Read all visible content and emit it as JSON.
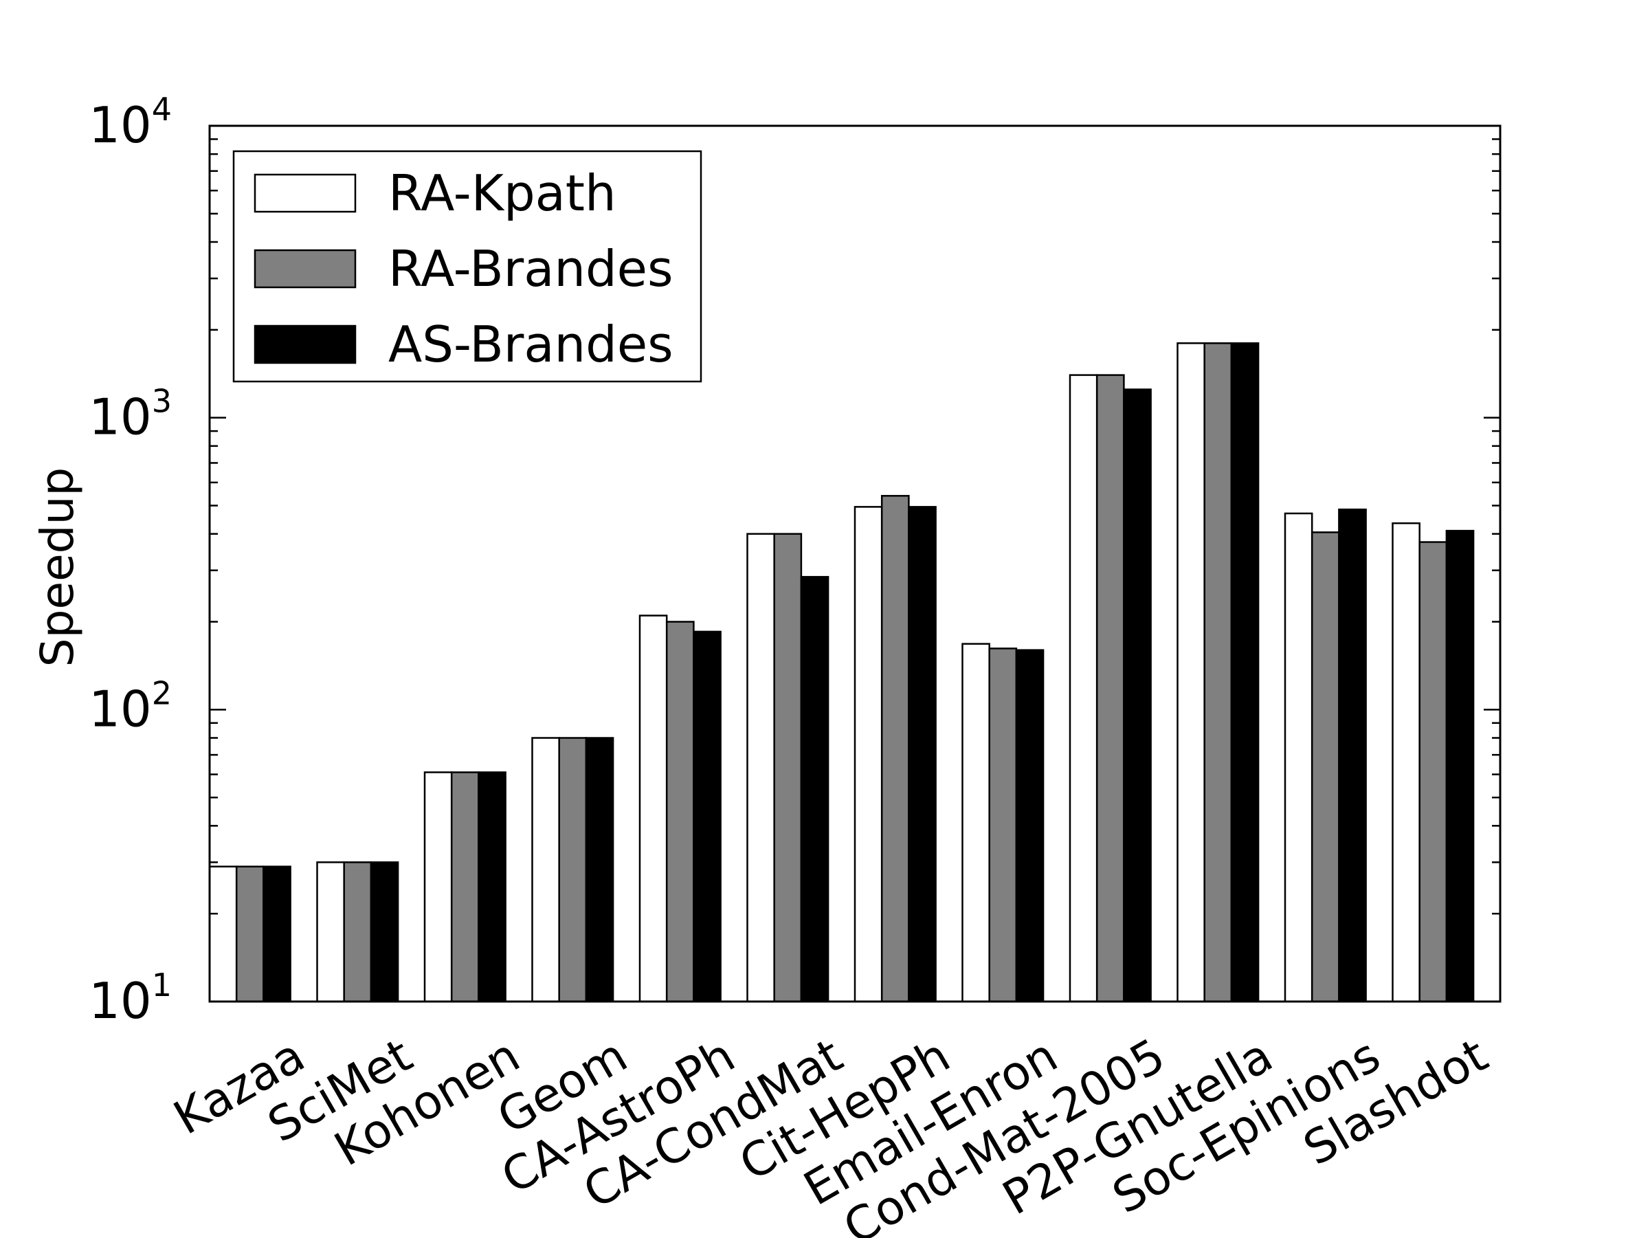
{
  "chart_data": {
    "type": "bar",
    "title": "",
    "xlabel": "",
    "ylabel": "Speedup",
    "yscale": "log",
    "ylim": [
      10,
      10000
    ],
    "y_ticks": [
      {
        "base": "10",
        "exp": "1",
        "value": 10
      },
      {
        "base": "10",
        "exp": "2",
        "value": 100
      },
      {
        "base": "10",
        "exp": "3",
        "value": 1000
      },
      {
        "base": "10",
        "exp": "4",
        "value": 10000
      }
    ],
    "grid": false,
    "legend_position": "top-left",
    "categories": [
      "Kazaa",
      "SciMet",
      "Kohonen",
      "Geom",
      "CA-AstroPh",
      "CA-CondMat",
      "Cit-HepPh",
      "Email-Enron",
      "Cond-Mat-2005",
      "P2P-Gnutella",
      "Soc-Epinions",
      "Slashdot"
    ],
    "series": [
      {
        "name": "RA-Kpath",
        "color": "#ffffff",
        "values": [
          29,
          30,
          61,
          80,
          210,
          400,
          495,
          168,
          1400,
          1800,
          470,
          435
        ]
      },
      {
        "name": "RA-Brandes",
        "color": "#808080",
        "values": [
          29,
          30,
          61,
          80,
          200,
          400,
          540,
          162,
          1400,
          1800,
          405,
          375
        ]
      },
      {
        "name": "AS-Brandes",
        "color": "#000000",
        "values": [
          29,
          30,
          61,
          80,
          185,
          285,
          495,
          160,
          1250,
          1800,
          485,
          410
        ]
      }
    ]
  }
}
